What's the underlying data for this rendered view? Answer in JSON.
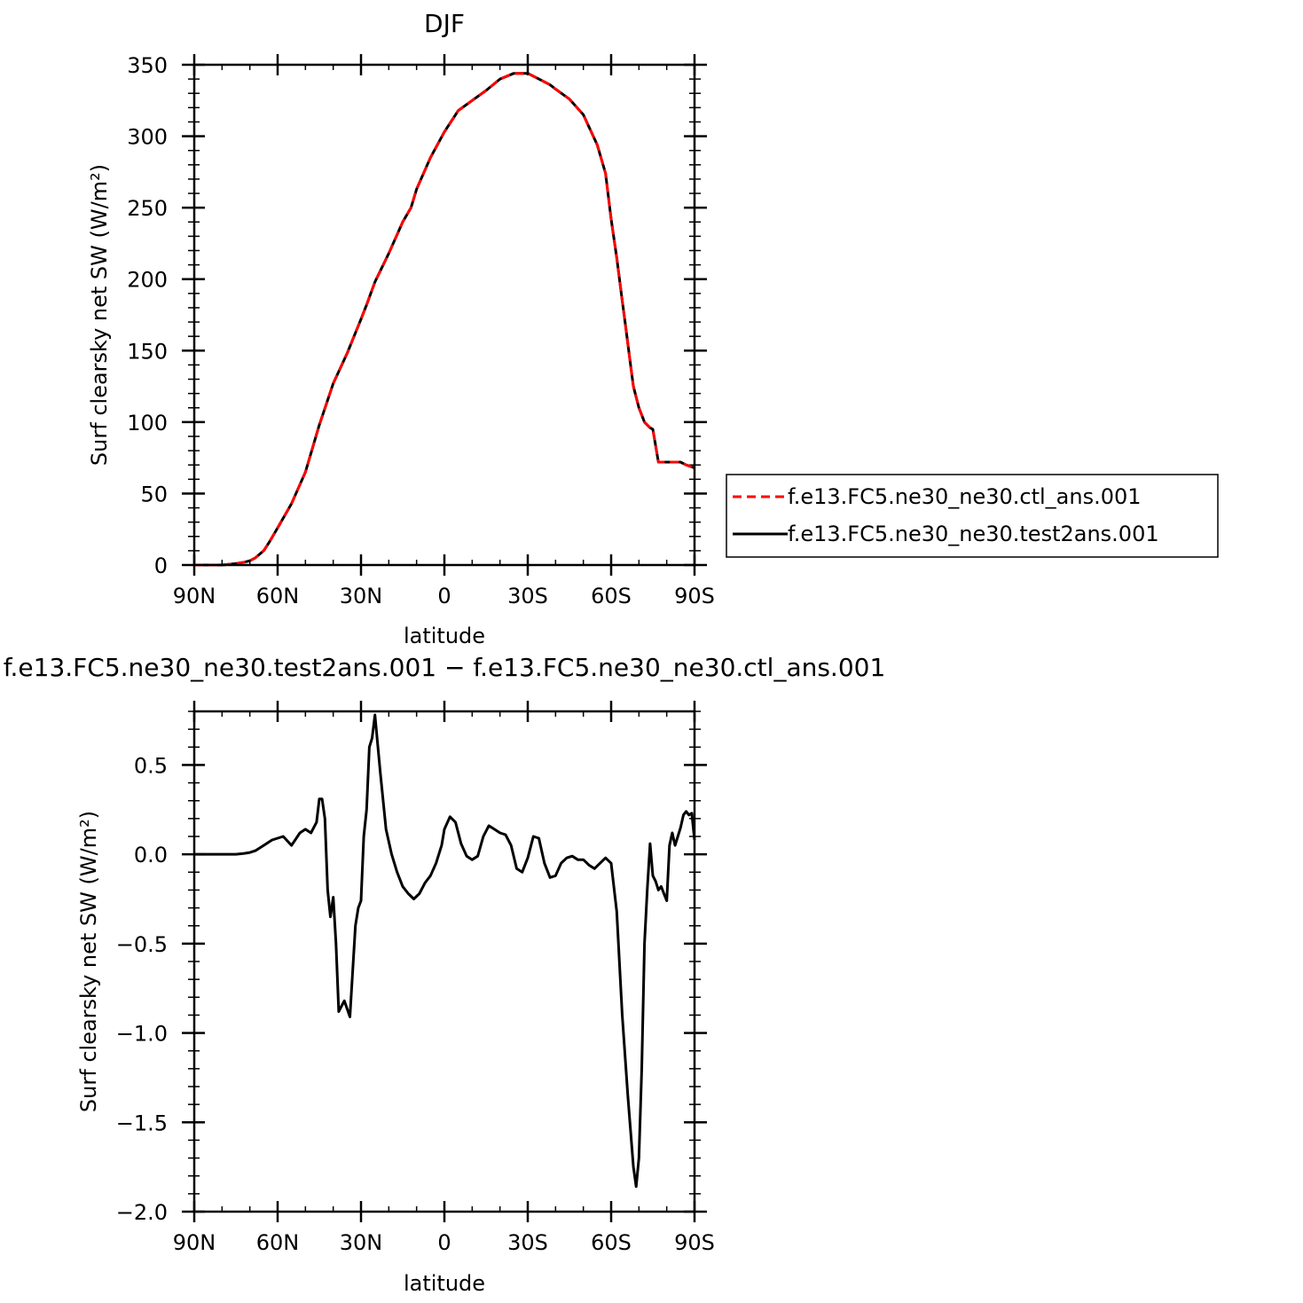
{
  "chart_data": [
    {
      "type": "line",
      "title": "DJF",
      "xlabel": "latitude",
      "ylabel": "Surf clearsky net SW (W/m²)",
      "xlim": [
        90,
        -90
      ],
      "ylim": [
        0,
        350
      ],
      "x_ticks": [
        {
          "value": 90,
          "label": "90N"
        },
        {
          "value": 60,
          "label": "60N"
        },
        {
          "value": 30,
          "label": "30N"
        },
        {
          "value": 0,
          "label": "0"
        },
        {
          "value": -30,
          "label": "30S"
        },
        {
          "value": -60,
          "label": "60S"
        },
        {
          "value": -90,
          "label": "90S"
        }
      ],
      "y_ticks": [
        0,
        50,
        100,
        150,
        200,
        250,
        300,
        350
      ],
      "y_tick_labels": [
        "0",
        "50",
        "100",
        "150",
        "200",
        "250",
        "300",
        "350"
      ],
      "legend_position": "right",
      "x": [
        90,
        85,
        80,
        75,
        72,
        70,
        68,
        65,
        63,
        60,
        55,
        50,
        45,
        40,
        35,
        30,
        28,
        25,
        20,
        15,
        12,
        10,
        5,
        0,
        -5,
        -10,
        -15,
        -20,
        -25,
        -30,
        -35,
        -38,
        -40,
        -45,
        -50,
        -55,
        -58,
        -60,
        -62,
        -63,
        -64,
        -65,
        -66,
        -67,
        -68,
        -70,
        -72,
        -74,
        -75,
        -77,
        -80,
        -85,
        -87,
        -90
      ],
      "series": [
        {
          "name": "f.e13.FC5.ne30_ne30.ctl_ans.001",
          "color": "#ff0000",
          "dash": "dashed",
          "values": [
            0,
            0,
            0,
            1,
            2,
            3,
            5,
            10,
            16,
            26,
            43,
            65,
            98,
            127,
            148,
            172,
            182,
            198,
            218,
            240,
            250,
            263,
            285,
            303,
            318,
            325,
            332,
            340,
            344,
            344,
            339,
            336,
            333,
            326,
            315,
            294,
            274,
            242,
            215,
            200,
            185,
            170,
            155,
            140,
            125,
            110,
            100,
            96,
            95,
            72,
            72,
            72,
            70,
            68
          ]
        },
        {
          "name": "f.e13.FC5.ne30_ne30.test2ans.001",
          "color": "#000000",
          "dash": "solid",
          "values": [
            0,
            0,
            0,
            1,
            2,
            3,
            5,
            10,
            16,
            26,
            43,
            65,
            98,
            127,
            148,
            172,
            182,
            198,
            218,
            240,
            250,
            263,
            285,
            303,
            318,
            325,
            332,
            340,
            344,
            344,
            339,
            336,
            333,
            326,
            315,
            294,
            274,
            242,
            215,
            200,
            185,
            170,
            155,
            140,
            125,
            110,
            100,
            96,
            95,
            72,
            72,
            72,
            70,
            68
          ]
        }
      ]
    },
    {
      "type": "line",
      "title": "f.e13.FC5.ne30_ne30.test2ans.001 − f.e13.FC5.ne30_ne30.ctl_ans.001",
      "xlabel": "latitude",
      "ylabel": "Surf clearsky net SW (W/m²)",
      "xlim": [
        90,
        -90
      ],
      "ylim": [
        -2.0,
        0.8
      ],
      "x_ticks": [
        {
          "value": 90,
          "label": "90N"
        },
        {
          "value": 60,
          "label": "60N"
        },
        {
          "value": 30,
          "label": "30N"
        },
        {
          "value": 0,
          "label": "0"
        },
        {
          "value": -30,
          "label": "30S"
        },
        {
          "value": -60,
          "label": "60S"
        },
        {
          "value": -90,
          "label": "90S"
        }
      ],
      "y_ticks": [
        -2.0,
        -1.5,
        -1.0,
        -0.5,
        0.0,
        0.5
      ],
      "y_tick_labels": [
        "−2.0",
        "−1.5",
        "−1.0",
        "−0.5",
        "0.0",
        "0.5"
      ],
      "x": [
        90,
        80,
        75,
        72,
        70,
        68,
        65,
        62,
        60,
        58,
        55,
        52,
        50,
        49,
        48,
        46,
        45,
        44,
        43,
        42,
        41,
        40,
        39,
        38,
        36,
        34,
        32,
        31,
        30,
        29,
        28,
        27,
        26,
        25,
        23,
        21,
        19,
        17,
        15,
        13,
        11,
        9,
        7,
        5,
        3,
        1,
        0,
        -2,
        -4,
        -6,
        -8,
        -10,
        -12,
        -14,
        -16,
        -18,
        -20,
        -22,
        -24,
        -26,
        -28,
        -30,
        -32,
        -34,
        -36,
        -38,
        -40,
        -42,
        -44,
        -46,
        -48,
        -50,
        -52,
        -54,
        -56,
        -58,
        -60,
        -62,
        -64,
        -66,
        -68,
        -69,
        -70,
        -71,
        -72,
        -73,
        -74,
        -75,
        -76,
        -77,
        -78,
        -79,
        -80,
        -81,
        -82,
        -83,
        -84,
        -85,
        -86,
        -87,
        -88,
        -89,
        -90
      ],
      "series": [
        {
          "name": "",
          "color": "#000000",
          "values": [
            0.0,
            0.0,
            0.0,
            0.005,
            0.01,
            0.02,
            0.05,
            0.08,
            0.09,
            0.1,
            0.05,
            0.12,
            0.14,
            0.13,
            0.12,
            0.18,
            0.31,
            0.31,
            0.2,
            -0.2,
            -0.35,
            -0.24,
            -0.5,
            -0.88,
            -0.82,
            -0.91,
            -0.4,
            -0.3,
            -0.26,
            0.1,
            0.25,
            0.6,
            0.65,
            0.78,
            0.45,
            0.14,
            0.0,
            -0.1,
            -0.18,
            -0.22,
            -0.25,
            -0.22,
            -0.16,
            -0.12,
            -0.05,
            0.05,
            0.14,
            0.21,
            0.18,
            0.06,
            -0.01,
            -0.03,
            -0.01,
            0.1,
            0.16,
            0.14,
            0.12,
            0.11,
            0.05,
            -0.08,
            -0.1,
            -0.02,
            0.1,
            0.09,
            -0.05,
            -0.13,
            -0.12,
            -0.05,
            -0.02,
            -0.01,
            -0.03,
            -0.03,
            -0.06,
            -0.08,
            -0.05,
            -0.02,
            -0.05,
            -0.32,
            -0.9,
            -1.35,
            -1.75,
            -1.86,
            -1.7,
            -1.2,
            -0.5,
            -0.2,
            0.06,
            -0.12,
            -0.15,
            -0.2,
            -0.18,
            -0.22,
            -0.26,
            0.05,
            0.12,
            0.05,
            0.1,
            0.15,
            0.22,
            0.24,
            0.22,
            0.23,
            0.08
          ]
        }
      ]
    }
  ]
}
